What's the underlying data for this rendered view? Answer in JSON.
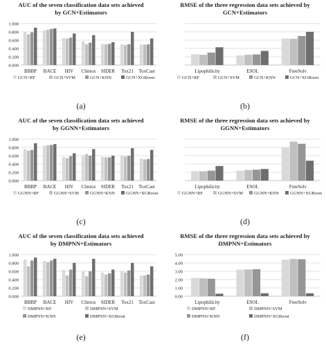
{
  "figure": {
    "panel_labels": [
      "(a)",
      "(b)",
      "(c)",
      "(d)",
      "(e)",
      "(f)"
    ]
  },
  "chart_data": [
    {
      "type": "bar",
      "title": "AUC of the seven classification data sets achieved by GCN+Estimators",
      "title_lines": [
        "AUC of the seven classification data sets achieved",
        "by GCN+Estimators"
      ],
      "categories": [
        "BBBP",
        "BACE",
        "HIV",
        "Clintox",
        "SIDER",
        "Tox21",
        "ToxCast"
      ],
      "ylim": [
        0.0,
        1.0
      ],
      "yticks": [
        0.0,
        0.2,
        0.4,
        0.6,
        0.8,
        1.0
      ],
      "ytick_labels": [
        "0.000",
        "0.200",
        "0.400",
        "0.600",
        "0.800",
        "1.000"
      ],
      "grid": true,
      "legend_position": "bottom",
      "legend_columns": 4,
      "series": [
        {
          "name": "GCN+RF",
          "color": "#d9d9d9",
          "values": [
            0.8,
            0.84,
            0.65,
            0.57,
            0.51,
            0.5,
            0.5
          ]
        },
        {
          "name": "GCN+SVM",
          "color": "#bfbfbf",
          "values": [
            0.74,
            0.85,
            0.64,
            0.5,
            0.5,
            0.48,
            0.49
          ]
        },
        {
          "name": "GCN+KNN",
          "color": "#969696",
          "values": [
            0.79,
            0.87,
            0.66,
            0.54,
            0.51,
            0.5,
            0.5
          ]
        },
        {
          "name": "GCN+XGBoost",
          "color": "#6e6e6e",
          "values": [
            0.9,
            0.88,
            0.76,
            0.72,
            0.55,
            0.8,
            0.64
          ]
        }
      ]
    },
    {
      "type": "bar",
      "title": "RMSE of the three regression data sets achieved by GCN+Estimators",
      "title_lines": [
        "RMSE of the three regression data sets achieved by",
        "GCN+Estimators"
      ],
      "categories": [
        "Lipophilicity",
        "ESOL",
        "FreeSolv"
      ],
      "ylim": [
        0.0,
        2.5
      ],
      "yticks": [
        0.0,
        0.5,
        1.0,
        1.5,
        2.0,
        2.5
      ],
      "ytick_labels": [],
      "grid": true,
      "legend_position": "bottom",
      "legend_columns": 4,
      "series": [
        {
          "name": "GCN+RF",
          "color": "#d9d9d9",
          "values": [
            0.65,
            0.58,
            1.6
          ]
        },
        {
          "name": "GCN+SVM",
          "color": "#bfbfbf",
          "values": [
            0.62,
            0.62,
            1.58
          ]
        },
        {
          "name": "GCN+KNN",
          "color": "#969696",
          "values": [
            0.75,
            0.64,
            1.75
          ]
        },
        {
          "name": "GCN+XGBoost",
          "color": "#6e6e6e",
          "values": [
            1.07,
            0.85,
            2.0
          ]
        }
      ]
    },
    {
      "type": "bar",
      "title": "AUC of the seven classification data sets achieved by GGNN+Estimators",
      "title_lines": [
        "AUC of the seven classification data sets achieved",
        "by GGNN+Estimators"
      ],
      "categories": [
        "BBBP",
        "BACE",
        "HIV",
        "Clintox",
        "SIDER",
        "Tox21",
        "ToxCast"
      ],
      "ylim": [
        0.0,
        1.0
      ],
      "yticks": [
        0.0,
        0.2,
        0.4,
        0.6,
        0.8,
        1.0
      ],
      "ytick_labels": [
        "0.000",
        "0.200",
        "0.400",
        "0.600",
        "0.800",
        "1.000"
      ],
      "grid": true,
      "legend_position": "bottom",
      "legend_columns": 4,
      "series": [
        {
          "name": "GGNN+RF",
          "color": "#d9d9d9",
          "values": [
            0.76,
            0.84,
            0.57,
            0.61,
            0.57,
            0.6,
            0.53
          ]
        },
        {
          "name": "GGNN+SVM",
          "color": "#bfbfbf",
          "values": [
            0.72,
            0.85,
            0.54,
            0.64,
            0.56,
            0.58,
            0.51
          ]
        },
        {
          "name": "GGNN+KNN",
          "color": "#969696",
          "values": [
            0.74,
            0.86,
            0.59,
            0.6,
            0.56,
            0.6,
            0.52
          ]
        },
        {
          "name": "GGNN+XGBoost",
          "color": "#6e6e6e",
          "values": [
            0.9,
            0.88,
            0.66,
            0.76,
            0.6,
            0.78,
            0.74
          ]
        }
      ]
    },
    {
      "type": "bar",
      "title": "RMSE of the three regression data sets achieved by GGNN+Estimators",
      "title_lines": [
        "RMSE of the three regression data sets achieved by",
        "GGNN+Estimators"
      ],
      "categories": [
        "Lipophilicity",
        "ESOL",
        "FreeSolv"
      ],
      "ylim": [
        0.0,
        2.5
      ],
      "yticks": [
        0.0,
        0.5,
        1.0,
        1.5,
        2.0,
        2.5
      ],
      "ytick_labels": [],
      "grid": true,
      "legend_position": "bottom",
      "legend_columns": 4,
      "series": [
        {
          "name": "GGNN+RF",
          "color": "#d9d9d9",
          "values": [
            0.57,
            0.6,
            1.98
          ]
        },
        {
          "name": "GGNN+SVM",
          "color": "#bfbfbf",
          "values": [
            0.56,
            0.64,
            2.35
          ]
        },
        {
          "name": "GGNN+KNN",
          "color": "#969696",
          "values": [
            0.6,
            0.66,
            2.22
          ]
        },
        {
          "name": "GGNN+XGBoost",
          "color": "#6e6e6e",
          "values": [
            0.88,
            0.7,
            1.2
          ]
        }
      ]
    },
    {
      "type": "bar",
      "title": "AUC of the seven classification data sets achieved by DMPNN+Estimators",
      "title_lines": [
        "AUC of the seven classification data sets achieved",
        "by DMPNN+Estimators"
      ],
      "categories": [
        "BBBP",
        "BACE",
        "HIV",
        "Clintox",
        "SIDER",
        "Tox21",
        "ToxCast"
      ],
      "ylim": [
        0.0,
        1.0
      ],
      "yticks": [
        0.0,
        0.2,
        0.4,
        0.6,
        0.8,
        1.0
      ],
      "ytick_labels": [
        "0.000",
        "0.200",
        "0.400",
        "0.600",
        "0.800",
        "1.000"
      ],
      "grid": true,
      "legend_position": "bottom",
      "legend_columns": 2,
      "series": [
        {
          "name": "DMPNN+RF",
          "color": "#d9d9d9",
          "values": [
            0.88,
            0.85,
            0.63,
            0.6,
            0.57,
            0.6,
            0.5
          ]
        },
        {
          "name": "DMPNN+SVM",
          "color": "#bfbfbf",
          "values": [
            0.72,
            0.82,
            0.5,
            0.48,
            0.52,
            0.57,
            0.5
          ]
        },
        {
          "name": "DMPNN+KNN",
          "color": "#969696",
          "values": [
            0.86,
            0.86,
            0.64,
            0.6,
            0.55,
            0.62,
            0.52
          ]
        },
        {
          "name": "DMPNN+XGBoost",
          "color": "#6e6e6e",
          "values": [
            0.93,
            0.9,
            0.8,
            0.9,
            0.64,
            0.8,
            0.72
          ]
        }
      ]
    },
    {
      "type": "bar",
      "title": "RMSE of the three regression data sets achieved by DMPNN+Estimators",
      "title_lines": [
        "RMSE of the three regression data sets achieved by",
        "DMPNN+Estimators"
      ],
      "categories": [
        "Lipophilicity",
        "ESOL",
        "FreeSolv"
      ],
      "ylim": [
        0.0,
        5.0
      ],
      "yticks": [
        0.0,
        1.0,
        2.0,
        3.0,
        4.0,
        5.0
      ],
      "ytick_labels": [
        "0.00",
        "1.00",
        "2.00",
        "3.00",
        "4.00",
        "5.00"
      ],
      "grid": true,
      "legend_position": "bottom",
      "legend_columns": 2,
      "series": [
        {
          "name": "DMPNN+RF",
          "color": "#d9d9d9",
          "values": [
            2.2,
            3.2,
            4.4
          ]
        },
        {
          "name": "DMPNN+SVM",
          "color": "#bfbfbf",
          "values": [
            2.15,
            3.22,
            4.48
          ]
        },
        {
          "name": "DMPNN+KNN",
          "color": "#969696",
          "values": [
            2.1,
            3.25,
            4.45
          ]
        },
        {
          "name": "DMPNN+XGBoost",
          "color": "#6e6e6e",
          "values": [
            0.3,
            0.35,
            0.35
          ]
        }
      ]
    }
  ]
}
